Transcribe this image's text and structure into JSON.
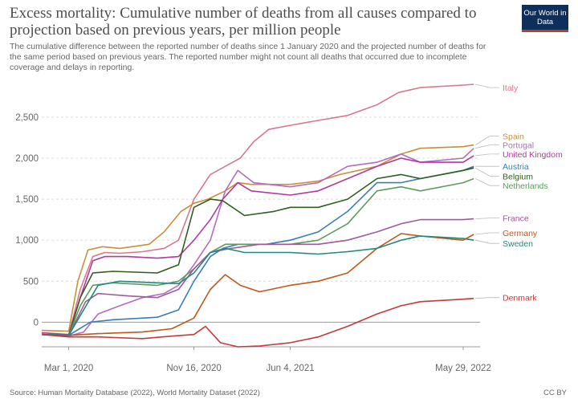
{
  "header": {
    "title": "Excess mortality: Cumulative number of deaths from all causes compared to projection based on previous years, per million people",
    "subtitle": "The cumulative difference between the reported number of deaths since 1 January 2020 and the projected number of deaths for the same period based on previous years. The reported number might not count all deaths that occurred due to incomplete coverage and delays in reporting.",
    "logo": "Our World in Data"
  },
  "footer": {
    "source": "Source: Human Mortality Database (2022), World Mortality Dataset (2022)",
    "license": "CC BY"
  },
  "colors": {
    "grid": "#dddddd",
    "axis": "#999999",
    "text": "#666666"
  },
  "chart_data": {
    "type": "line",
    "title": "Excess mortality: Cumulative number of deaths from all causes compared to projection based on previous years, per million people",
    "ylim": [
      -300,
      2900
    ],
    "yticks": [
      0,
      500,
      1000,
      1500,
      2000,
      2500
    ],
    "ytick_labels": [
      "0",
      "500",
      "1,000",
      "1,500",
      "2,000",
      "2,500"
    ],
    "xticks": [
      "2020-03-01",
      "2020-11-16",
      "2021-06-04",
      "2022-05-29"
    ],
    "xtick_labels": [
      "Mar 1, 2020",
      "Nov 16, 2020",
      "Jun 4, 2021",
      "May 29, 2022"
    ],
    "xlim": [
      "2020-01-05",
      "2022-07-03"
    ],
    "grid": true,
    "legend": "right, labels at line ends",
    "series": [
      {
        "name": "Italy",
        "color": "#d9778f",
        "label_y": 2860,
        "points": [
          [
            "2020-01-05",
            -150
          ],
          [
            "2020-03-01",
            -160
          ],
          [
            "2020-03-25",
            400
          ],
          [
            "2020-04-20",
            800
          ],
          [
            "2020-05-15",
            850
          ],
          [
            "2020-06-15",
            840
          ],
          [
            "2020-08-01",
            860
          ],
          [
            "2020-09-15",
            900
          ],
          [
            "2020-10-15",
            1000
          ],
          [
            "2020-11-16",
            1500
          ],
          [
            "2020-12-20",
            1800
          ],
          [
            "2021-01-20",
            1900
          ],
          [
            "2021-02-20",
            2000
          ],
          [
            "2021-03-20",
            2200
          ],
          [
            "2021-04-20",
            2350
          ],
          [
            "2021-06-04",
            2400
          ],
          [
            "2021-08-01",
            2460
          ],
          [
            "2021-10-01",
            2520
          ],
          [
            "2021-12-01",
            2650
          ],
          [
            "2022-01-15",
            2800
          ],
          [
            "2022-03-01",
            2860
          ],
          [
            "2022-05-29",
            2890
          ],
          [
            "2022-06-20",
            2900
          ]
        ]
      },
      {
        "name": "Spain",
        "color": "#c9903a",
        "label_y": 2270,
        "points": [
          [
            "2020-01-05",
            -100
          ],
          [
            "2020-03-01",
            -110
          ],
          [
            "2020-03-20",
            500
          ],
          [
            "2020-04-10",
            880
          ],
          [
            "2020-05-10",
            920
          ],
          [
            "2020-06-15",
            900
          ],
          [
            "2020-08-15",
            950
          ],
          [
            "2020-09-15",
            1100
          ],
          [
            "2020-10-20",
            1350
          ],
          [
            "2020-11-16",
            1450
          ],
          [
            "2020-12-15",
            1500
          ],
          [
            "2021-01-20",
            1600
          ],
          [
            "2021-02-15",
            1700
          ],
          [
            "2021-03-15",
            1680
          ],
          [
            "2021-06-04",
            1680
          ],
          [
            "2021-08-01",
            1720
          ],
          [
            "2021-09-15",
            1800
          ],
          [
            "2021-12-01",
            1900
          ],
          [
            "2022-01-20",
            2050
          ],
          [
            "2022-03-01",
            2120
          ],
          [
            "2022-04-15",
            2130
          ],
          [
            "2022-05-29",
            2140
          ],
          [
            "2022-06-20",
            2160
          ]
        ]
      },
      {
        "name": "Portugal",
        "color": "#b46bc3",
        "label_y": 2160,
        "points": [
          [
            "2020-01-05",
            -150
          ],
          [
            "2020-03-01",
            -170
          ],
          [
            "2020-04-01",
            -120
          ],
          [
            "2020-05-01",
            100
          ],
          [
            "2020-06-15",
            200
          ],
          [
            "2020-08-01",
            300
          ],
          [
            "2020-09-15",
            350
          ],
          [
            "2020-10-15",
            450
          ],
          [
            "2020-11-16",
            700
          ],
          [
            "2020-12-20",
            1000
          ],
          [
            "2021-01-20",
            1600
          ],
          [
            "2021-02-15",
            1850
          ],
          [
            "2021-03-20",
            1700
          ],
          [
            "2021-06-04",
            1650
          ],
          [
            "2021-08-01",
            1700
          ],
          [
            "2021-10-01",
            1900
          ],
          [
            "2021-12-01",
            1950
          ],
          [
            "2022-01-20",
            2050
          ],
          [
            "2022-03-01",
            1950
          ],
          [
            "2022-05-29",
            2000
          ],
          [
            "2022-06-20",
            2120
          ]
        ]
      },
      {
        "name": "United Kingdom",
        "color": "#b03aa0",
        "label_y": 2050,
        "points": [
          [
            "2020-01-05",
            -130
          ],
          [
            "2020-03-01",
            -150
          ],
          [
            "2020-03-25",
            300
          ],
          [
            "2020-04-20",
            750
          ],
          [
            "2020-05-15",
            800
          ],
          [
            "2020-07-01",
            800
          ],
          [
            "2020-09-01",
            780
          ],
          [
            "2020-10-15",
            800
          ],
          [
            "2020-11-16",
            1000
          ],
          [
            "2020-12-20",
            1250
          ],
          [
            "2021-01-15",
            1500
          ],
          [
            "2021-02-15",
            1700
          ],
          [
            "2021-03-15",
            1600
          ],
          [
            "2021-06-04",
            1550
          ],
          [
            "2021-08-01",
            1600
          ],
          [
            "2021-10-01",
            1750
          ],
          [
            "2021-12-01",
            1900
          ],
          [
            "2022-01-20",
            2000
          ],
          [
            "2022-03-01",
            1950
          ],
          [
            "2022-05-29",
            1950
          ],
          [
            "2022-06-20",
            2030
          ]
        ]
      },
      {
        "name": "Austria",
        "color": "#3a7cb8",
        "label_y": 1900,
        "points": [
          [
            "2020-01-05",
            -150
          ],
          [
            "2020-03-01",
            -160
          ],
          [
            "2020-04-15",
            0
          ],
          [
            "2020-06-01",
            30
          ],
          [
            "2020-09-01",
            60
          ],
          [
            "2020-10-15",
            150
          ],
          [
            "2020-11-16",
            500
          ],
          [
            "2020-12-20",
            800
          ],
          [
            "2021-01-15",
            900
          ],
          [
            "2021-02-15",
            950
          ],
          [
            "2021-04-15",
            950
          ],
          [
            "2021-06-04",
            1000
          ],
          [
            "2021-08-01",
            1100
          ],
          [
            "2021-10-01",
            1350
          ],
          [
            "2021-12-01",
            1700
          ],
          [
            "2022-01-20",
            1700
          ],
          [
            "2022-03-01",
            1750
          ],
          [
            "2022-05-29",
            1850
          ],
          [
            "2022-06-20",
            1900
          ]
        ]
      },
      {
        "name": "Belgium",
        "color": "#2f5e1f",
        "label_y": 1780,
        "points": [
          [
            "2020-01-05",
            -150
          ],
          [
            "2020-03-01",
            -160
          ],
          [
            "2020-03-25",
            300
          ],
          [
            "2020-04-20",
            600
          ],
          [
            "2020-06-01",
            620
          ],
          [
            "2020-09-01",
            600
          ],
          [
            "2020-10-15",
            700
          ],
          [
            "2020-11-16",
            1400
          ],
          [
            "2020-12-20",
            1500
          ],
          [
            "2021-01-15",
            1480
          ],
          [
            "2021-03-01",
            1300
          ],
          [
            "2021-05-01",
            1350
          ],
          [
            "2021-06-04",
            1400
          ],
          [
            "2021-08-01",
            1400
          ],
          [
            "2021-10-01",
            1500
          ],
          [
            "2021-12-01",
            1750
          ],
          [
            "2022-01-20",
            1800
          ],
          [
            "2022-03-01",
            1750
          ],
          [
            "2022-05-29",
            1850
          ],
          [
            "2022-06-20",
            1880
          ]
        ]
      },
      {
        "name": "Netherlands",
        "color": "#5f9a5f",
        "label_y": 1665,
        "points": [
          [
            "2020-01-05",
            -150
          ],
          [
            "2020-03-01",
            -160
          ],
          [
            "2020-03-25",
            200
          ],
          [
            "2020-04-20",
            450
          ],
          [
            "2020-06-01",
            480
          ],
          [
            "2020-09-01",
            450
          ],
          [
            "2020-10-15",
            500
          ],
          [
            "2020-11-16",
            650
          ],
          [
            "2020-12-20",
            850
          ],
          [
            "2021-01-20",
            950
          ],
          [
            "2021-03-01",
            950
          ],
          [
            "2021-06-04",
            950
          ],
          [
            "2021-08-01",
            1000
          ],
          [
            "2021-10-01",
            1200
          ],
          [
            "2021-12-01",
            1600
          ],
          [
            "2022-01-20",
            1650
          ],
          [
            "2022-03-01",
            1600
          ],
          [
            "2022-05-29",
            1700
          ],
          [
            "2022-06-20",
            1750
          ]
        ]
      },
      {
        "name": "France",
        "color": "#a05a9a",
        "label_y": 1270,
        "points": [
          [
            "2020-01-05",
            -150
          ],
          [
            "2020-03-01",
            -160
          ],
          [
            "2020-04-05",
            250
          ],
          [
            "2020-05-01",
            350
          ],
          [
            "2020-07-01",
            320
          ],
          [
            "2020-09-01",
            300
          ],
          [
            "2020-10-15",
            400
          ],
          [
            "2020-11-16",
            650
          ],
          [
            "2020-12-20",
            850
          ],
          [
            "2021-02-01",
            900
          ],
          [
            "2021-04-01",
            950
          ],
          [
            "2021-06-04",
            950
          ],
          [
            "2021-08-01",
            950
          ],
          [
            "2021-10-01",
            1000
          ],
          [
            "2021-12-01",
            1100
          ],
          [
            "2022-01-20",
            1200
          ],
          [
            "2022-03-01",
            1250
          ],
          [
            "2022-05-29",
            1250
          ],
          [
            "2022-06-20",
            1260
          ]
        ]
      },
      {
        "name": "Germany",
        "color": "#c2571a",
        "label_y": 1090,
        "points": [
          [
            "2020-01-05",
            -150
          ],
          [
            "2020-03-01",
            -160
          ],
          [
            "2020-05-01",
            -140
          ],
          [
            "2020-08-01",
            -120
          ],
          [
            "2020-10-01",
            -80
          ],
          [
            "2020-11-16",
            50
          ],
          [
            "2020-12-20",
            400
          ],
          [
            "2021-01-20",
            580
          ],
          [
            "2021-02-20",
            450
          ],
          [
            "2021-04-01",
            370
          ],
          [
            "2021-06-04",
            450
          ],
          [
            "2021-08-01",
            500
          ],
          [
            "2021-10-01",
            600
          ],
          [
            "2021-12-01",
            900
          ],
          [
            "2022-01-20",
            1080
          ],
          [
            "2022-03-01",
            1050
          ],
          [
            "2022-05-29",
            1000
          ],
          [
            "2022-06-20",
            1070
          ]
        ]
      },
      {
        "name": "Sweden",
        "color": "#1f8a7a",
        "label_y": 960,
        "points": [
          [
            "2020-01-05",
            -150
          ],
          [
            "2020-03-01",
            -160
          ],
          [
            "2020-04-01",
            150
          ],
          [
            "2020-05-01",
            450
          ],
          [
            "2020-06-15",
            500
          ],
          [
            "2020-09-01",
            480
          ],
          [
            "2020-10-15",
            470
          ],
          [
            "2020-11-16",
            600
          ],
          [
            "2020-12-20",
            850
          ],
          [
            "2021-01-20",
            900
          ],
          [
            "2021-03-01",
            850
          ],
          [
            "2021-06-04",
            850
          ],
          [
            "2021-08-01",
            830
          ],
          [
            "2021-10-01",
            860
          ],
          [
            "2021-12-01",
            900
          ],
          [
            "2022-01-20",
            1000
          ],
          [
            "2022-03-01",
            1050
          ],
          [
            "2022-05-29",
            1020
          ],
          [
            "2022-06-20",
            1000
          ]
        ]
      },
      {
        "name": "Denmark",
        "color": "#c43a3a",
        "label_y": 300,
        "points": [
          [
            "2020-01-05",
            -150
          ],
          [
            "2020-03-01",
            -180
          ],
          [
            "2020-05-01",
            -180
          ],
          [
            "2020-08-01",
            -200
          ],
          [
            "2020-10-01",
            -170
          ],
          [
            "2020-11-16",
            -150
          ],
          [
            "2020-12-10",
            -50
          ],
          [
            "2021-01-10",
            -250
          ],
          [
            "2021-02-15",
            -300
          ],
          [
            "2021-04-01",
            -290
          ],
          [
            "2021-06-04",
            -250
          ],
          [
            "2021-08-01",
            -180
          ],
          [
            "2021-10-01",
            -50
          ],
          [
            "2021-12-01",
            100
          ],
          [
            "2022-01-20",
            200
          ],
          [
            "2022-03-01",
            250
          ],
          [
            "2022-05-29",
            280
          ],
          [
            "2022-06-20",
            290
          ]
        ]
      }
    ]
  }
}
